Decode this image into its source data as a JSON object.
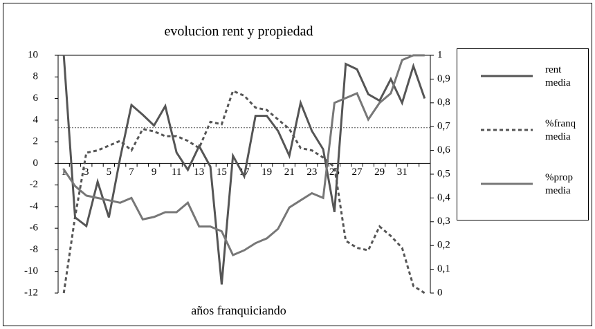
{
  "chart_data": {
    "type": "line",
    "title": "evolucion rent y propiedad",
    "xlabel": "años franquiciando",
    "categories": [
      "1",
      null,
      "3",
      null,
      "5",
      null,
      "7",
      null,
      "9",
      null,
      "11",
      null,
      "13",
      null,
      "15",
      null,
      "17",
      null,
      "19",
      null,
      "21",
      null,
      "23",
      null,
      "25",
      null,
      "27",
      null,
      "29",
      null,
      "31",
      null,
      null
    ],
    "series": [
      {
        "name": "rent media",
        "color": "#555555",
        "dash": "solid",
        "axis": "y",
        "values": [
          10,
          -5,
          -5.8,
          -1.7,
          -5,
          0.5,
          5.4,
          4.5,
          3.5,
          5.3,
          1,
          -0.6,
          1.6,
          -0.3,
          -11.2,
          0.7,
          -1.2,
          4.4,
          4.4,
          3,
          0.7,
          5.6,
          3,
          1.3,
          -4.5,
          9.2,
          8.7,
          6.4,
          5.8,
          7.8,
          5.6,
          9,
          6
        ]
      },
      {
        "name": "%franq media",
        "color": "#555555",
        "dash": "dashed",
        "axis": "y2",
        "values": [
          0,
          0.32,
          0.59,
          0.6,
          0.62,
          0.64,
          0.6,
          0.69,
          0.68,
          0.66,
          0.66,
          0.64,
          0.61,
          0.72,
          0.71,
          0.85,
          0.83,
          0.78,
          0.77,
          0.73,
          0.69,
          0.61,
          0.6,
          0.57,
          0.53,
          0.22,
          0.19,
          0.18,
          0.28,
          0.24,
          0.19,
          0.03,
          0
        ]
      },
      {
        "name": "%prop media",
        "color": "#777777",
        "dash": "solid",
        "axis": "y2",
        "values": [
          0.52,
          0.45,
          0.41,
          0.4,
          0.39,
          0.38,
          0.4,
          0.31,
          0.32,
          0.34,
          0.34,
          0.38,
          0.28,
          0.28,
          0.26,
          0.16,
          0.18,
          0.21,
          0.23,
          0.27,
          0.36,
          0.39,
          0.42,
          0.4,
          0.8,
          0.82,
          0.84,
          0.73,
          0.8,
          0.84,
          0.98,
          1,
          1
        ]
      }
    ],
    "reference_line": 3.3,
    "ylim": [
      -12,
      10
    ],
    "yticks": [
      -12,
      -10,
      -8,
      -6,
      -4,
      -2,
      0,
      2,
      4,
      6,
      8,
      10
    ],
    "y2lim": [
      0,
      1
    ],
    "y2ticks": [
      0,
      {
        "value": 0.1,
        "label": "0,1"
      },
      {
        "value": 0.2,
        "label": "0,2"
      },
      {
        "value": 0.3,
        "label": "0,3"
      },
      {
        "value": 0.4,
        "label": "0,4"
      },
      {
        "value": 0.5,
        "label": "0,5"
      },
      {
        "value": 0.6,
        "label": "0,6"
      },
      {
        "value": 0.7,
        "label": "0,7"
      },
      {
        "value": 0.8,
        "label": "0,8"
      },
      {
        "value": 0.9,
        "label": "0,9"
      },
      1
    ],
    "legend": "right"
  }
}
